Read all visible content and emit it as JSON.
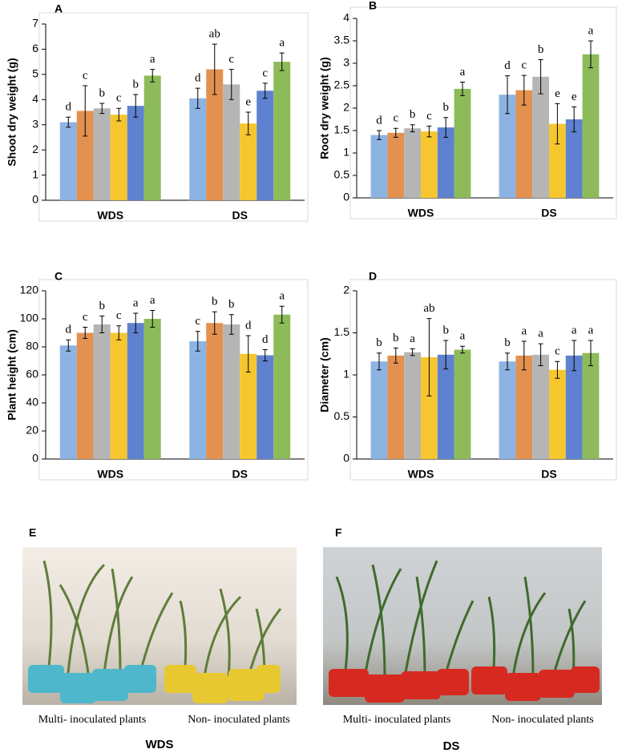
{
  "chart_data": [
    {
      "type": "bar",
      "panel": "A",
      "ylabel": "Shoot dry weight (g)",
      "categories": [
        "WDS",
        "DS"
      ],
      "ylim": [
        0,
        7
      ],
      "yticks": [
        0,
        1,
        2,
        3,
        4,
        5,
        6,
        7
      ],
      "series": [
        {
          "color": "#8db3e2",
          "values": [
            3.1,
            4.05
          ],
          "errors": [
            0.2,
            0.4
          ],
          "letters": [
            "d",
            "d"
          ]
        },
        {
          "color": "#e39150",
          "values": [
            3.55,
            5.2
          ],
          "errors": [
            1.0,
            1.0
          ],
          "letters": [
            "c",
            "ab"
          ]
        },
        {
          "color": "#b5b5b5",
          "values": [
            3.65,
            4.6
          ],
          "errors": [
            0.2,
            0.6
          ],
          "letters": [
            "b",
            "c"
          ]
        },
        {
          "color": "#f6c62e",
          "values": [
            3.4,
            3.05
          ],
          "errors": [
            0.25,
            0.45
          ],
          "letters": [
            "c",
            "e"
          ]
        },
        {
          "color": "#5e82cf",
          "values": [
            3.75,
            4.35
          ],
          "errors": [
            0.45,
            0.3
          ],
          "letters": [
            "b",
            "c"
          ]
        },
        {
          "color": "#8dbb5a",
          "values": [
            4.95,
            5.5
          ],
          "errors": [
            0.25,
            0.35
          ],
          "letters": [
            "a",
            "a"
          ]
        }
      ]
    },
    {
      "type": "bar",
      "panel": "B",
      "ylabel": "Root dry weight (g)",
      "categories": [
        "WDS",
        "DS"
      ],
      "ylim": [
        0,
        4
      ],
      "yticks": [
        0,
        0.5,
        1,
        1.5,
        2,
        2.5,
        3,
        3.5,
        4
      ],
      "series": [
        {
          "color": "#8db3e2",
          "values": [
            1.4,
            2.3
          ],
          "errors": [
            0.1,
            0.42
          ],
          "letters": [
            "d",
            "d"
          ]
        },
        {
          "color": "#e39150",
          "values": [
            1.45,
            2.4
          ],
          "errors": [
            0.1,
            0.33
          ],
          "letters": [
            "c",
            "c"
          ]
        },
        {
          "color": "#b5b5b5",
          "values": [
            1.55,
            2.7
          ],
          "errors": [
            0.08,
            0.38
          ],
          "letters": [
            "b",
            "b"
          ]
        },
        {
          "color": "#f6c62e",
          "values": [
            1.48,
            1.65
          ],
          "errors": [
            0.12,
            0.45
          ],
          "letters": [
            "c",
            "e"
          ]
        },
        {
          "color": "#5e82cf",
          "values": [
            1.57,
            1.75
          ],
          "errors": [
            0.22,
            0.28
          ],
          "letters": [
            "b",
            "e"
          ]
        },
        {
          "color": "#8dbb5a",
          "values": [
            2.43,
            3.2
          ],
          "errors": [
            0.15,
            0.3
          ],
          "letters": [
            "a",
            "a"
          ]
        }
      ]
    },
    {
      "type": "bar",
      "panel": "C",
      "ylabel": "Plant height (cm)",
      "categories": [
        "WDS",
        "DS"
      ],
      "ylim": [
        0,
        120
      ],
      "yticks": [
        0,
        20,
        40,
        60,
        80,
        100,
        120
      ],
      "series": [
        {
          "color": "#8db3e2",
          "values": [
            81,
            84
          ],
          "errors": [
            4,
            7
          ],
          "letters": [
            "d",
            "c"
          ]
        },
        {
          "color": "#e39150",
          "values": [
            90,
            97
          ],
          "errors": [
            4,
            8
          ],
          "letters": [
            "c",
            "b"
          ]
        },
        {
          "color": "#b5b5b5",
          "values": [
            96,
            96
          ],
          "errors": [
            6,
            7
          ],
          "letters": [
            "b",
            "b"
          ]
        },
        {
          "color": "#f6c62e",
          "values": [
            90,
            75
          ],
          "errors": [
            5,
            13
          ],
          "letters": [
            "c",
            "d"
          ]
        },
        {
          "color": "#5e82cf",
          "values": [
            97,
            74
          ],
          "errors": [
            7,
            4
          ],
          "letters": [
            "a",
            "d"
          ]
        },
        {
          "color": "#8dbb5a",
          "values": [
            100,
            103
          ],
          "errors": [
            6,
            6
          ],
          "letters": [
            "a",
            "a"
          ]
        }
      ]
    },
    {
      "type": "bar",
      "panel": "D",
      "ylabel": "Diameter (cm)",
      "categories": [
        "WDS",
        "DS"
      ],
      "ylim": [
        0,
        2
      ],
      "yticks": [
        0,
        0.5,
        1,
        1.5,
        2
      ],
      "series": [
        {
          "color": "#8db3e2",
          "values": [
            1.16,
            1.16
          ],
          "errors": [
            0.1,
            0.1
          ],
          "letters": [
            "b",
            "b"
          ]
        },
        {
          "color": "#e39150",
          "values": [
            1.23,
            1.23
          ],
          "errors": [
            0.09,
            0.17
          ],
          "letters": [
            "b",
            "a"
          ]
        },
        {
          "color": "#b5b5b5",
          "values": [
            1.27,
            1.24
          ],
          "errors": [
            0.04,
            0.13
          ],
          "letters": [
            "a",
            "a"
          ]
        },
        {
          "color": "#f6c62e",
          "values": [
            1.21,
            1.06
          ],
          "errors": [
            0.46,
            0.1
          ],
          "letters": [
            "ab",
            "c"
          ]
        },
        {
          "color": "#5e82cf",
          "values": [
            1.24,
            1.23
          ],
          "errors": [
            0.17,
            0.18
          ],
          "letters": [
            "b",
            "a"
          ]
        },
        {
          "color": "#8dbb5a",
          "values": [
            1.3,
            1.26
          ],
          "errors": [
            0.04,
            0.15
          ],
          "letters": [
            "a",
            "a"
          ]
        }
      ]
    }
  ],
  "photos": [
    {
      "panel": "E",
      "left_caption": "Multi- inoculated plants",
      "right_caption": "Non- inoculated plants",
      "group": "WDS"
    },
    {
      "panel": "F",
      "left_caption": "Multi- inoculated plants",
      "right_caption": "Non- inoculated plants",
      "group": "DS"
    }
  ]
}
